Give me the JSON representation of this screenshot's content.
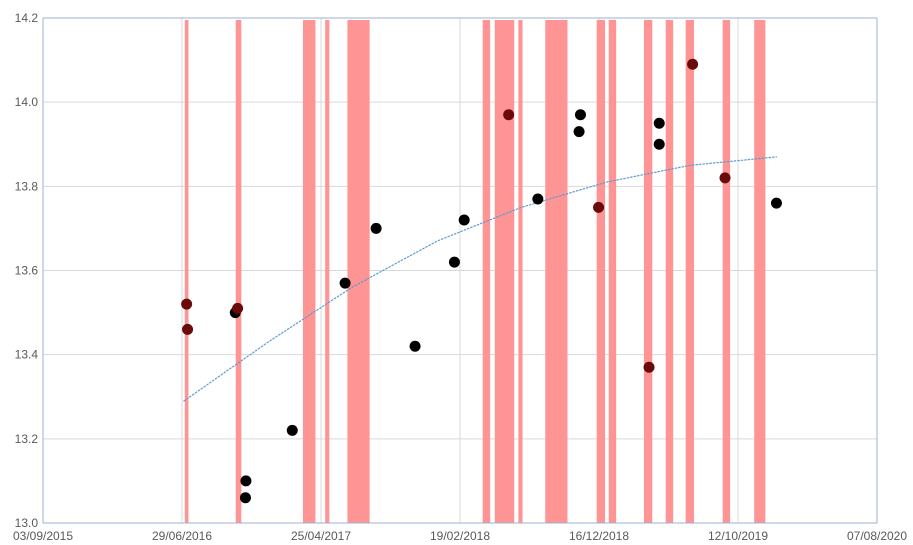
{
  "chart_data": {
    "type": "scatter",
    "title": "",
    "xlabel": "",
    "ylabel": "",
    "x_axis_type": "date",
    "xlim": [
      "2015-09-03",
      "2020-08-07"
    ],
    "ylim": [
      13.0,
      14.2
    ],
    "x_ticks": [
      "2015-09-03",
      "2016-06-29",
      "2017-04-25",
      "2018-02-19",
      "2018-12-16",
      "2019-10-12",
      "2020-08-07"
    ],
    "x_tick_labels": [
      "03/09/2015",
      "29/06/2016",
      "25/04/2017",
      "19/02/2018",
      "16/12/2018",
      "12/10/2019",
      "07/08/2020"
    ],
    "y_ticks": [
      13.0,
      13.2,
      13.4,
      13.6,
      13.8,
      14.0,
      14.2
    ],
    "y_tick_labels": [
      "13.0",
      "13.2",
      "13.4",
      "13.6",
      "13.8",
      "14.0",
      "14.2"
    ],
    "grid": true,
    "legend": "none",
    "points": [
      {
        "x": "2016-07-09",
        "y": 13.52
      },
      {
        "x": "2016-07-11",
        "y": 13.46
      },
      {
        "x": "2016-10-22",
        "y": 13.5
      },
      {
        "x": "2016-10-27",
        "y": 13.51
      },
      {
        "x": "2016-11-14",
        "y": 13.1
      },
      {
        "x": "2016-11-13",
        "y": 13.06
      },
      {
        "x": "2017-02-22",
        "y": 13.22
      },
      {
        "x": "2017-06-16",
        "y": 13.57
      },
      {
        "x": "2017-08-22",
        "y": 13.7
      },
      {
        "x": "2017-11-14",
        "y": 13.42
      },
      {
        "x": "2018-02-07",
        "y": 13.62
      },
      {
        "x": "2018-02-28",
        "y": 13.72
      },
      {
        "x": "2018-06-04",
        "y": 13.97
      },
      {
        "x": "2018-08-06",
        "y": 13.77
      },
      {
        "x": "2018-11-03",
        "y": 13.93
      },
      {
        "x": "2018-11-06",
        "y": 13.97
      },
      {
        "x": "2018-12-15",
        "y": 13.75
      },
      {
        "x": "2019-04-03",
        "y": 13.37
      },
      {
        "x": "2019-04-25",
        "y": 13.95
      },
      {
        "x": "2019-04-25",
        "y": 13.9
      },
      {
        "x": "2019-07-06",
        "y": 14.09
      },
      {
        "x": "2019-09-14",
        "y": 13.82
      },
      {
        "x": "2020-01-03",
        "y": 13.76
      }
    ],
    "trendline": {
      "style": "dotted",
      "x_range": [
        "2016-07-03",
        "2020-01-03"
      ],
      "points": [
        {
          "x": "2016-07-03",
          "y": 13.29
        },
        {
          "x": "2017-01-01",
          "y": 13.43
        },
        {
          "x": "2017-07-01",
          "y": 13.56
        },
        {
          "x": "2018-01-01",
          "y": 13.67
        },
        {
          "x": "2018-07-01",
          "y": 13.75
        },
        {
          "x": "2019-01-01",
          "y": 13.81
        },
        {
          "x": "2019-07-01",
          "y": 13.85
        },
        {
          "x": "2020-01-03",
          "y": 13.87
        }
      ]
    },
    "highlight_periods": [
      {
        "start": "2016-07-05",
        "end": "2016-07-13"
      },
      {
        "start": "2016-10-23",
        "end": "2016-11-04"
      },
      {
        "start": "2017-03-17",
        "end": "2017-04-13"
      },
      {
        "start": "2017-05-04",
        "end": "2017-05-13"
      },
      {
        "start": "2017-06-21",
        "end": "2017-08-08"
      },
      {
        "start": "2018-04-09",
        "end": "2018-04-25"
      },
      {
        "start": "2018-05-05",
        "end": "2018-06-16"
      },
      {
        "start": "2018-06-25",
        "end": "2018-07-04"
      },
      {
        "start": "2018-08-22",
        "end": "2018-10-09"
      },
      {
        "start": "2018-12-11",
        "end": "2018-12-29"
      },
      {
        "start": "2019-01-06",
        "end": "2019-01-22"
      },
      {
        "start": "2019-03-23",
        "end": "2019-04-10"
      },
      {
        "start": "2019-05-09",
        "end": "2019-05-25"
      },
      {
        "start": "2019-06-21",
        "end": "2019-07-09"
      },
      {
        "start": "2019-09-09",
        "end": "2019-09-25"
      },
      {
        "start": "2019-11-16",
        "end": "2019-12-10"
      }
    ],
    "colors": {
      "highlight": "#ff9494",
      "points": "#000000",
      "trendline": "#5b9bd5",
      "grid": "#d9d9d9",
      "axis": "#9db1cd",
      "tick_text": "#595959"
    }
  }
}
